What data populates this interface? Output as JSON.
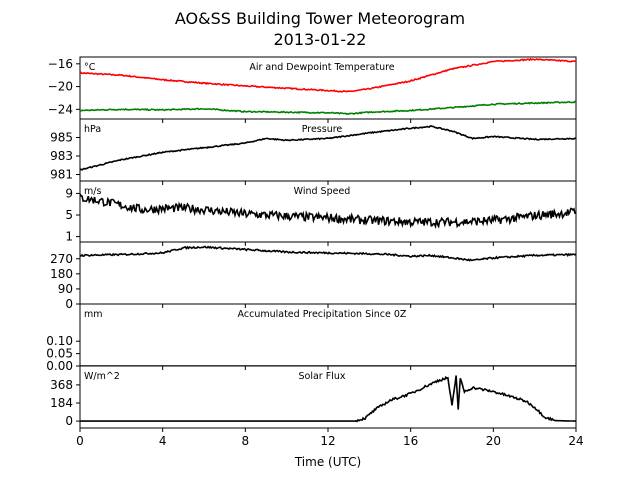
{
  "title": "AO&SS Building Tower Meteorogram",
  "subtitle": "2013-01-22",
  "chart_data": [
    {
      "type": "line",
      "panel_title": "Air and Dewpoint Temperature",
      "unit": "°C",
      "x": [
        0,
        2,
        4,
        6,
        8,
        10,
        12,
        13,
        14,
        16,
        18,
        20,
        22,
        24
      ],
      "series": [
        {
          "color": "#ff0000",
          "values": [
            -17.6,
            -18.0,
            -18.8,
            -19.4,
            -19.9,
            -20.3,
            -20.7,
            -20.9,
            -20.4,
            -19.0,
            -16.9,
            -15.6,
            -15.2,
            -15.6
          ]
        },
        {
          "color": "#008000",
          "values": [
            -24.2,
            -24.0,
            -24.1,
            -23.9,
            -24.4,
            -24.5,
            -24.6,
            -24.8,
            -24.5,
            -24.2,
            -23.7,
            -23.1,
            -22.9,
            -22.7
          ]
        }
      ],
      "yticks": [
        -24,
        -20,
        -16
      ],
      "ylim": [
        -25.7,
        -14.8
      ],
      "xlim": [
        0,
        24
      ]
    },
    {
      "type": "line",
      "panel_title": "Pressure",
      "unit": "hPa",
      "x": [
        0,
        2,
        4,
        6,
        8,
        9,
        10,
        12,
        14,
        16,
        17,
        18,
        19,
        20,
        22,
        24
      ],
      "series": [
        {
          "color": "#000000",
          "values": [
            981.5,
            982.6,
            983.4,
            983.9,
            984.4,
            984.9,
            984.7,
            984.9,
            985.5,
            986.0,
            986.2,
            985.7,
            984.9,
            985.1,
            984.8,
            984.9
          ]
        }
      ],
      "yticks": [
        981,
        983,
        985
      ],
      "ylim": [
        980.3,
        987.0
      ],
      "xlim": [
        0,
        24
      ]
    },
    {
      "type": "line",
      "panel_title": "Wind Speed",
      "unit": "m/s",
      "x": [
        0,
        1,
        2,
        3,
        4,
        5,
        6,
        7,
        8,
        9,
        10,
        11,
        12,
        13,
        14,
        15,
        16,
        17,
        18,
        19,
        20,
        21,
        22,
        23,
        24
      ],
      "series": [
        {
          "color": "#000000",
          "values": [
            8.2,
            7.6,
            6.8,
            6.0,
            6.2,
            6.3,
            6.0,
            5.6,
            5.2,
            5.0,
            4.8,
            4.6,
            4.5,
            4.2,
            4.0,
            3.9,
            3.7,
            3.7,
            3.7,
            3.8,
            4.0,
            4.4,
            4.9,
            5.2,
            5.6
          ]
        }
      ],
      "yticks": [
        1,
        5,
        9
      ],
      "ylim": [
        0.0,
        11.3
      ],
      "xlim": [
        0,
        24
      ]
    },
    {
      "type": "line",
      "panel_title": "",
      "unit": "",
      "x": [
        0,
        2,
        4,
        5,
        6,
        8,
        10,
        12,
        14,
        15,
        16,
        17,
        18,
        19,
        20,
        22,
        24
      ],
      "series": [
        {
          "color": "#000000",
          "values": [
            290,
            295,
            305,
            335,
            340,
            325,
            310,
            305,
            300,
            295,
            285,
            290,
            275,
            260,
            275,
            290,
            295
          ]
        }
      ],
      "yticks": [
        0,
        90,
        180,
        270
      ],
      "ylim": [
        0,
        370
      ],
      "xlim": [
        0,
        24
      ]
    },
    {
      "type": "line",
      "panel_title": "Accumulated Precipitation Since 0Z",
      "unit": "mm",
      "x": [
        0,
        24
      ],
      "series": [
        {
          "color": "#000000",
          "values": [
            0.0,
            0.0
          ]
        }
      ],
      "yticks": [
        0.0,
        0.05,
        0.1
      ],
      "ytick_labels": [
        "0.00",
        "0.05",
        "0.10"
      ],
      "ylim": [
        0.0,
        0.25
      ],
      "xlim": [
        0,
        24
      ]
    },
    {
      "type": "line",
      "panel_title": "Solar Flux",
      "unit": "W/m^2",
      "x": [
        0,
        13.3,
        13.8,
        14.3,
        15.0,
        16.0,
        16.8,
        17.3,
        17.8,
        18.0,
        18.2,
        18.3,
        18.4,
        18.6,
        19.0,
        20.0,
        21.0,
        21.6,
        22.0,
        22.5,
        23.0,
        24.0
      ],
      "series": [
        {
          "color": "#000000",
          "values": [
            0,
            0,
            30,
            120,
            210,
            280,
            360,
            410,
            440,
            150,
            460,
            120,
            430,
            300,
            340,
            300,
            240,
            200,
            140,
            40,
            5,
            0
          ]
        }
      ],
      "yticks": [
        0,
        184,
        368
      ],
      "ylim": [
        -70,
        560
      ],
      "xlim": [
        0,
        24
      ]
    }
  ],
  "xaxis": {
    "label": "Time (UTC)",
    "ticks": [
      0,
      4,
      8,
      12,
      16,
      20,
      24
    ]
  }
}
